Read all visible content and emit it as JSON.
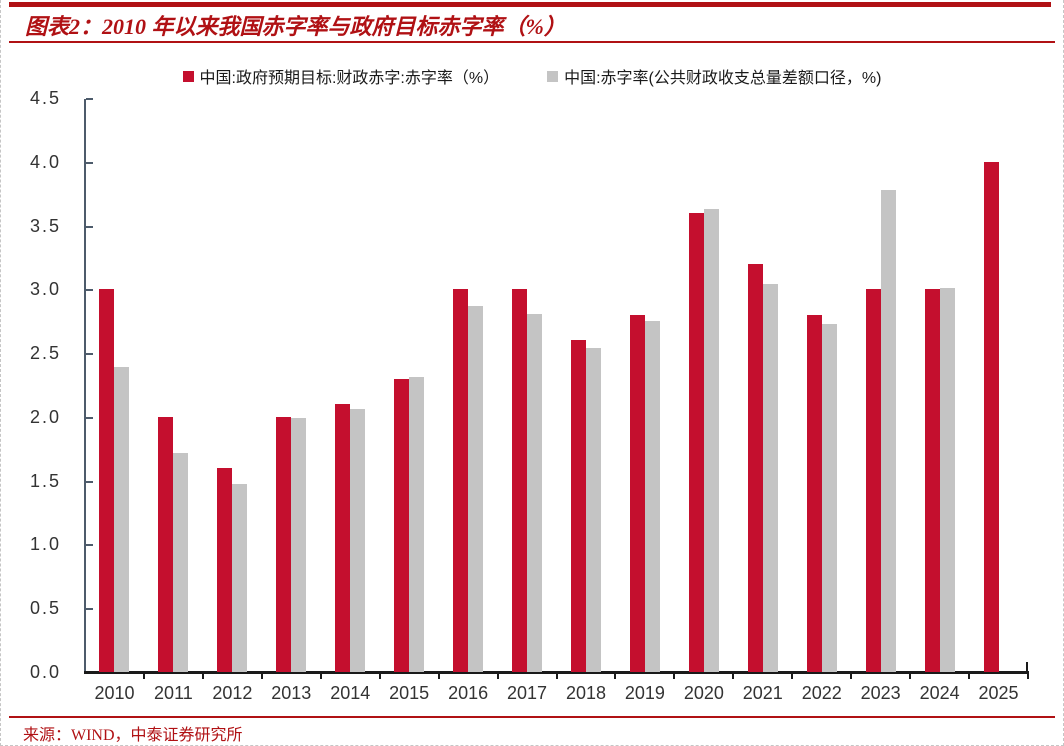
{
  "page": {
    "title": "图表2：2010 年以来我国赤字率与政府目标赤字率（%）",
    "source": "来源：WIND，中泰证券研究所"
  },
  "colors": {
    "accent_red": "#B01114",
    "bar_red": "#C40F2E",
    "bar_gray": "#C4C4C4",
    "y_axis_line": "#4D5B6B",
    "x_axis_line": "#1A1A1A",
    "axis_text": "#333333"
  },
  "chart_data": {
    "type": "bar",
    "title": "图表2：2010 年以来我国赤字率与政府目标赤字率（%）",
    "categories": [
      "2010",
      "2011",
      "2012",
      "2013",
      "2014",
      "2015",
      "2016",
      "2017",
      "2018",
      "2019",
      "2020",
      "2021",
      "2022",
      "2023",
      "2024",
      "2025"
    ],
    "series": [
      {
        "name": "中国:政府预期目标:财政赤字:赤字率（%）",
        "color": "#C40F2E",
        "values": [
          3.0,
          2.0,
          1.6,
          2.0,
          2.1,
          2.3,
          3.0,
          3.0,
          2.6,
          2.8,
          3.6,
          3.2,
          2.8,
          3.0,
          3.0,
          4.0
        ]
      },
      {
        "name": "中国:赤字率(公共财政收支总量差额口径，%)",
        "color": "#C4C4C4",
        "values": [
          2.39,
          1.72,
          1.47,
          1.99,
          2.06,
          2.31,
          2.87,
          2.81,
          2.54,
          2.75,
          3.63,
          3.04,
          2.73,
          3.78,
          3.01,
          null
        ]
      }
    ],
    "xlabel": "",
    "ylabel": "",
    "ylim": [
      0,
      4.5
    ],
    "ytick_step": 0.5,
    "grid": false,
    "legend_position": "top"
  }
}
